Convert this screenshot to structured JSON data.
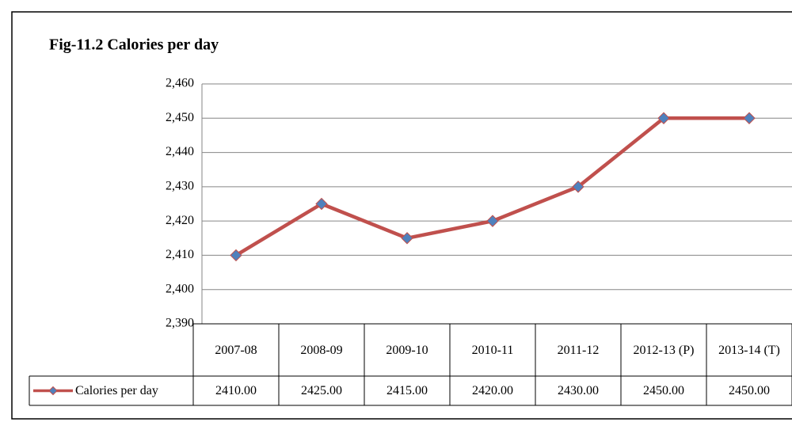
{
  "chart_data": {
    "type": "line",
    "title": "Fig-11.2 Calories per day",
    "categories": [
      "2007-08",
      "2008-09",
      "2009-10",
      "2010-11",
      "2011-12",
      "2012-13 (P)",
      "2013-14 (T)"
    ],
    "series": [
      {
        "name": "Calories per day",
        "color": "#c0504d",
        "marker_color": "#4f81bd",
        "values": [
          2410,
          2425,
          2415,
          2420,
          2430,
          2450,
          2450
        ],
        "value_labels": [
          "2410.00",
          "2425.00",
          "2415.00",
          "2420.00",
          "2430.00",
          "2450.00",
          "2450.00"
        ]
      }
    ],
    "ylim": [
      2390,
      2460
    ],
    "yticks": [
      {
        "value": 2390,
        "label": "2,390"
      },
      {
        "value": 2400,
        "label": "2,400"
      },
      {
        "value": 2410,
        "label": "2,410"
      },
      {
        "value": 2420,
        "label": "2,420"
      },
      {
        "value": 2430,
        "label": "2,430"
      },
      {
        "value": 2440,
        "label": "2,440"
      },
      {
        "value": 2450,
        "label": "2,450"
      },
      {
        "value": 2460,
        "label": "2,460"
      }
    ],
    "grid": true
  }
}
